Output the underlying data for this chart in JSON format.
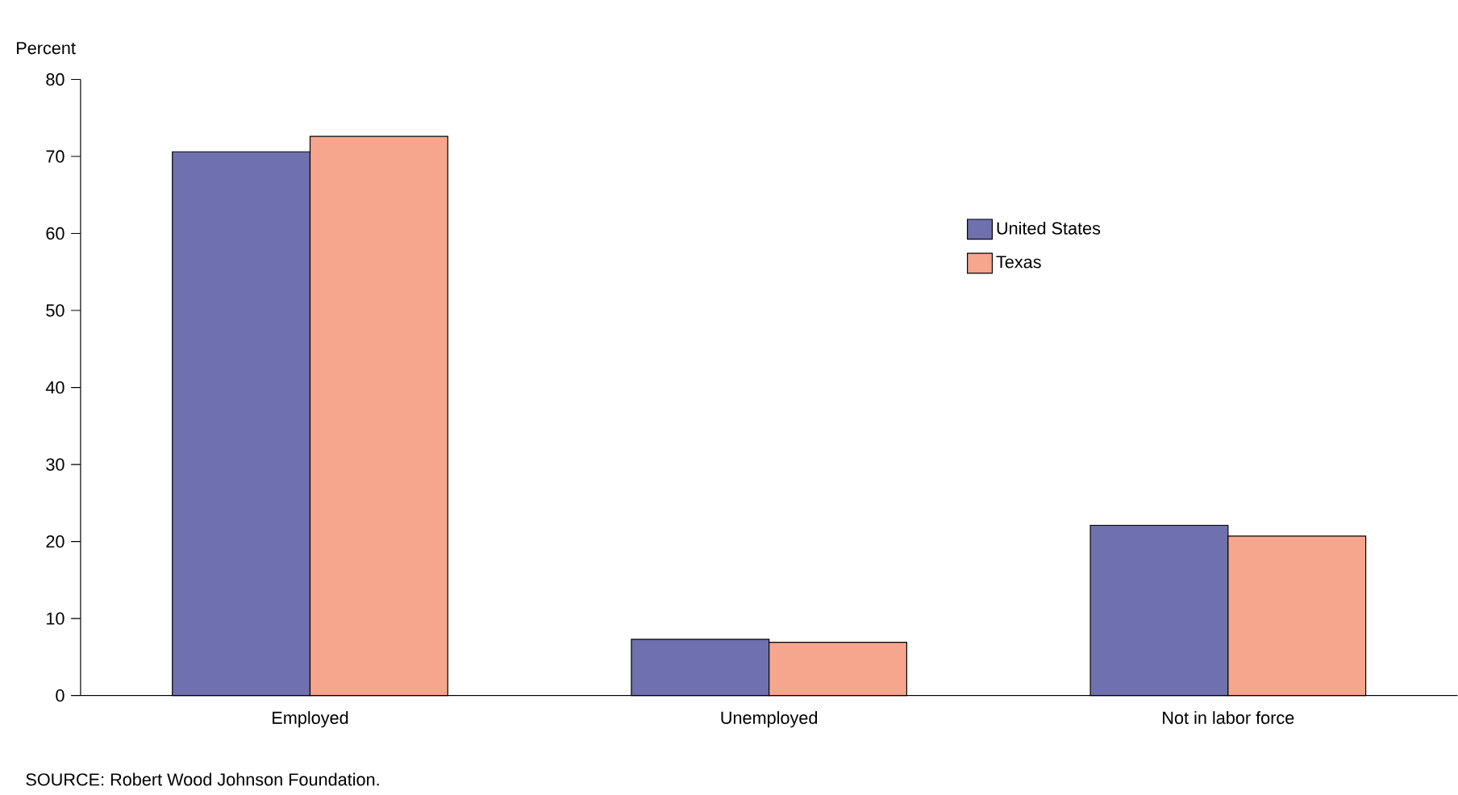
{
  "chart_data": {
    "type": "bar",
    "ylabel": "Percent",
    "categories": [
      "Employed",
      "Unemployed",
      "Not in labor force"
    ],
    "series": [
      {
        "name": "United States",
        "color": "#6f70ae",
        "values": [
          70.6,
          7.3,
          22.1
        ]
      },
      {
        "name": "Texas",
        "color": "#f5a68c",
        "values": [
          72.6,
          6.9,
          20.7
        ]
      }
    ],
    "ylim": [
      0,
      80
    ],
    "yticks": [
      0,
      10,
      20,
      30,
      40,
      50,
      60,
      70,
      80
    ],
    "grid": false,
    "legend": "top right",
    "annotations": [
      "SOURCE: Robert Wood Johnson Foundation."
    ]
  }
}
